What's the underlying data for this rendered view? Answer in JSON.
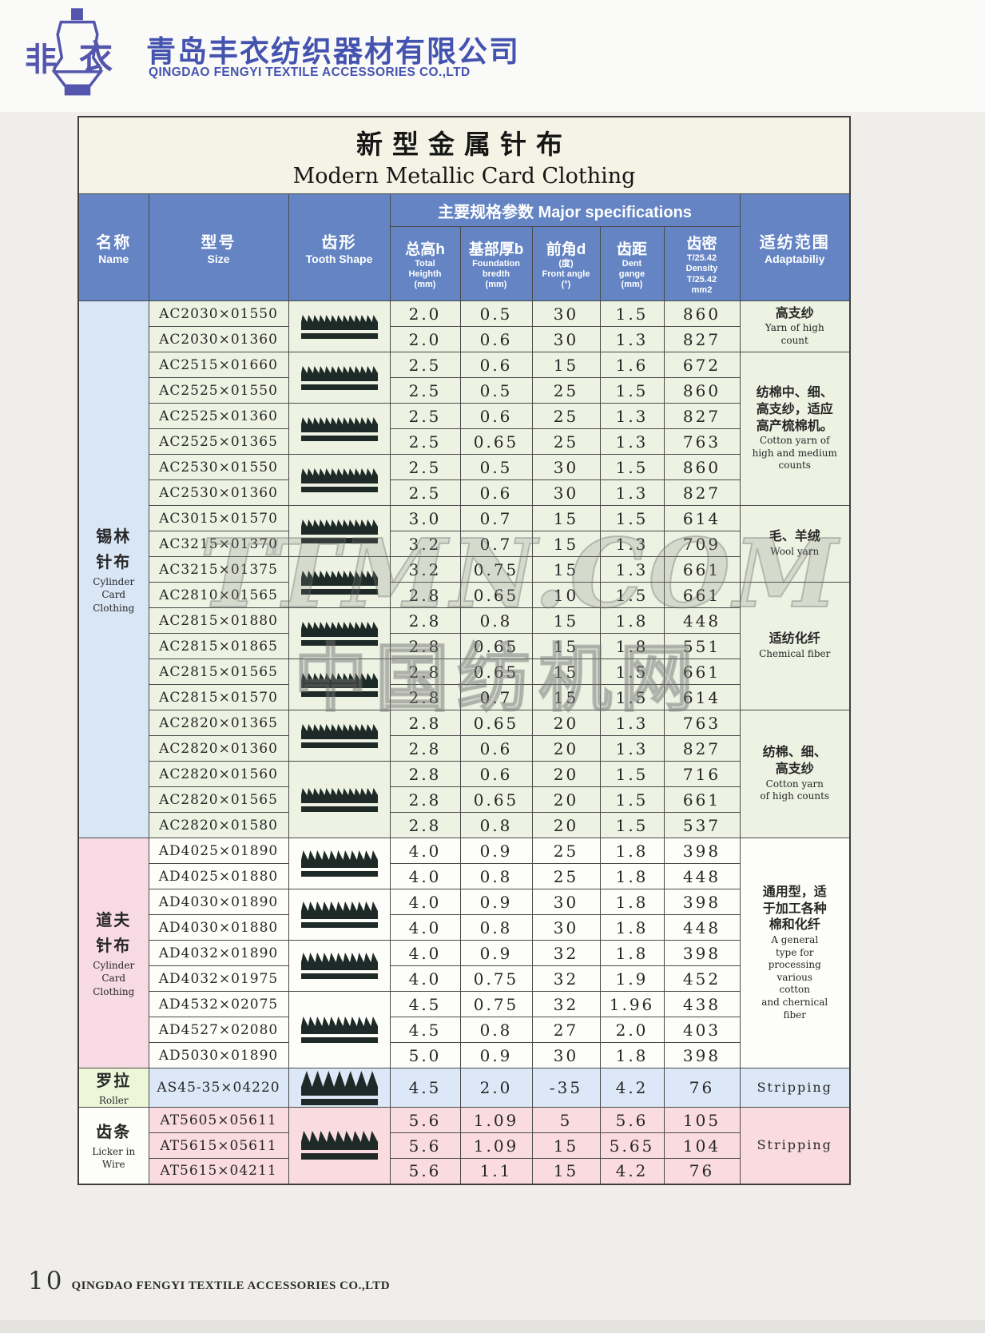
{
  "logo": {
    "mark_left": "非",
    "mark_right": "衣",
    "chinese_name": "青岛丰衣纺织器材有限公司",
    "english_name": "QINGDAO FENGYI TEXTILE ACCESSORIES CO.,LTD",
    "brand_color": "#4553b0"
  },
  "watermarks": [
    "TTMN.COM",
    "中国纺机网"
  ],
  "page": {
    "footer": {
      "page_number": "10",
      "company": "QINGDAO FENGYI TEXTILE ACCESSORIES CO.,LTD"
    }
  },
  "colors": {
    "header_blue": "#6484c4",
    "title_ivory": "#f4f3e5",
    "cylinder_row_green": "#edf2e2",
    "cylinder_name_blue": "#d9e6f5",
    "doffer_name_pink": "#f7dae3",
    "doffer_row_white": "#fdfdfa",
    "roller_row_blue": "#dce8f7",
    "roller_name_green": "#eef6da",
    "licker_row_pink": "#fadbe0",
    "tooth_dark": "#1e2a27"
  },
  "table": {
    "title_cn": "新型金属针布",
    "title_en": "Modern Metallic Card Clothing",
    "header": {
      "name_cn": "名称",
      "name_en": "Name",
      "size_cn": "型号",
      "size_en": "Size",
      "tooth_cn": "齿形",
      "tooth_en": "Tooth Shape",
      "specs_group": "主要规格参数 Major specifications",
      "spec_cols": [
        {
          "cn": "总高h",
          "sub": [
            "Total",
            "Heighth",
            "(mm)"
          ]
        },
        {
          "cn": "基部厚b",
          "sub": [
            "Foundation",
            "bredth",
            "(mm)"
          ]
        },
        {
          "cn": "前角d",
          "sub": [
            "(度)",
            "Front angle",
            "(°)"
          ]
        },
        {
          "cn": "齿距",
          "sub": [
            "Dent",
            "gange",
            "(mm)"
          ]
        },
        {
          "cn": "齿密",
          "sub": [
            "T/25.42",
            "Density",
            "T/25.42",
            "mm2"
          ]
        }
      ],
      "adapt_cn": "适纺范围",
      "adapt_en": "Adaptabiliy"
    },
    "groups": [
      {
        "name_cn": [
          "锡林",
          "针布"
        ],
        "name_en": [
          "Cylinder",
          "Card",
          "Clothing"
        ],
        "name_bg": "#d9e6f5",
        "row_bg": "#edf2e2",
        "tall": false,
        "rows": [
          {
            "size": "AC2030×01550",
            "values": [
              "2.0",
              "0.5",
              "30",
              "1.5",
              "860"
            ]
          },
          {
            "size": "AC2030×01360",
            "values": [
              "2.0",
              "0.6",
              "30",
              "1.3",
              "827"
            ]
          },
          {
            "size": "AC2515×01660",
            "values": [
              "2.5",
              "0.6",
              "15",
              "1.6",
              "672"
            ]
          },
          {
            "size": "AC2525×01550",
            "values": [
              "2.5",
              "0.5",
              "25",
              "1.5",
              "860"
            ]
          },
          {
            "size": "AC2525×01360",
            "values": [
              "2.5",
              "0.6",
              "25",
              "1.3",
              "827"
            ]
          },
          {
            "size": "AC2525×01365",
            "values": [
              "2.5",
              "0.65",
              "25",
              "1.3",
              "763"
            ]
          },
          {
            "size": "AC2530×01550",
            "values": [
              "2.5",
              "0.5",
              "30",
              "1.5",
              "860"
            ]
          },
          {
            "size": "AC2530×01360",
            "values": [
              "2.5",
              "0.6",
              "30",
              "1.3",
              "827"
            ]
          },
          {
            "size": "AC3015×01570",
            "values": [
              "3.0",
              "0.7",
              "15",
              "1.5",
              "614"
            ]
          },
          {
            "size": "AC3215×01370",
            "values": [
              "3.2",
              "0.7",
              "15",
              "1.3",
              "709"
            ]
          },
          {
            "size": "AC3215×01375",
            "values": [
              "3.2",
              "0.75",
              "15",
              "1.3",
              "661"
            ]
          },
          {
            "size": "AC2810×01565",
            "values": [
              "2.8",
              "0.65",
              "10",
              "1.5",
              "661"
            ]
          },
          {
            "size": "AC2815×01880",
            "values": [
              "2.8",
              "0.8",
              "15",
              "1.8",
              "448"
            ]
          },
          {
            "size": "AC2815×01865",
            "values": [
              "2.8",
              "0.65",
              "15",
              "1.8",
              "551"
            ]
          },
          {
            "size": "AC2815×01565",
            "values": [
              "2.8",
              "0.65",
              "15",
              "1.5",
              "661"
            ]
          },
          {
            "size": "AC2815×01570",
            "values": [
              "2.8",
              "0.7",
              "15",
              "1.5",
              "614"
            ]
          },
          {
            "size": "AC2820×01365",
            "values": [
              "2.8",
              "0.65",
              "20",
              "1.3",
              "763"
            ]
          },
          {
            "size": "AC2820×01360",
            "values": [
              "2.8",
              "0.6",
              "20",
              "1.3",
              "827"
            ]
          },
          {
            "size": "AC2820×01560",
            "values": [
              "2.8",
              "0.6",
              "20",
              "1.5",
              "716"
            ]
          },
          {
            "size": "AC2820×01565",
            "values": [
              "2.8",
              "0.65",
              "20",
              "1.5",
              "661"
            ]
          },
          {
            "size": "AC2820×01580",
            "values": [
              "2.8",
              "0.8",
              "20",
              "1.5",
              "537"
            ]
          }
        ],
        "tooth_cells": [
          {
            "start": 0,
            "span": 2,
            "icon": "tooth-profile-fine"
          },
          {
            "start": 2,
            "span": 2,
            "icon": "tooth-profile-fine"
          },
          {
            "start": 4,
            "span": 2,
            "icon": "tooth-profile-fine"
          },
          {
            "start": 6,
            "span": 2,
            "icon": "tooth-profile-fine"
          },
          {
            "start": 8,
            "span": 2,
            "icon": "tooth-profile-fine"
          },
          {
            "start": 10,
            "span": 2,
            "icon": "tooth-profile-fine"
          },
          {
            "start": 12,
            "span": 2,
            "icon": "tooth-profile-fine"
          },
          {
            "start": 14,
            "span": 2,
            "icon": "tooth-profile-fine"
          },
          {
            "start": 16,
            "span": 2,
            "icon": "tooth-profile-fine"
          },
          {
            "start": 18,
            "span": 3,
            "icon": "tooth-profile-fine"
          }
        ],
        "adapt_cells": [
          {
            "start": 0,
            "span": 2,
            "cn": [
              "高支纱"
            ],
            "en": [
              "Yarn of high",
              "count"
            ]
          },
          {
            "start": 2,
            "span": 6,
            "cn": [
              "纺棉中、细、",
              "高支纱，适应",
              "高产梳棉机。"
            ],
            "en": [
              "Cotton yarn of",
              "high and medium",
              "counts"
            ]
          },
          {
            "start": 8,
            "span": 3,
            "cn": [
              "毛、羊绒"
            ],
            "en": [
              "Wool yarn"
            ]
          },
          {
            "start": 11,
            "span": 5,
            "cn": [
              "适纺化纤"
            ],
            "en": [
              "Chemical fiber"
            ]
          },
          {
            "start": 16,
            "span": 5,
            "cn": [
              "纺棉、细、",
              "高支纱"
            ],
            "en": [
              "Cotton yarn",
              "of high counts"
            ]
          }
        ]
      },
      {
        "name_cn": [
          "道夫",
          "针布"
        ],
        "name_en": [
          "Cylinder",
          "Card",
          "Clothing"
        ],
        "name_bg": "#f7dae3",
        "row_bg": "#fdfdfa",
        "tall": false,
        "rows": [
          {
            "size": "AD4025×01890",
            "values": [
              "4.0",
              "0.9",
              "25",
              "1.8",
              "398"
            ]
          },
          {
            "size": "AD4025×01880",
            "values": [
              "4.0",
              "0.8",
              "25",
              "1.8",
              "448"
            ]
          },
          {
            "size": "AD4030×01890",
            "values": [
              "4.0",
              "0.9",
              "30",
              "1.8",
              "398"
            ]
          },
          {
            "size": "AD4030×01880",
            "values": [
              "4.0",
              "0.8",
              "30",
              "1.8",
              "448"
            ]
          },
          {
            "size": "AD4032×01890",
            "values": [
              "4.0",
              "0.9",
              "32",
              "1.8",
              "398"
            ]
          },
          {
            "size": "AD4032×01975",
            "values": [
              "4.0",
              "0.75",
              "32",
              "1.9",
              "452"
            ]
          },
          {
            "size": "AD4532×02075",
            "values": [
              "4.5",
              "0.75",
              "32",
              "1.96",
              "438"
            ]
          },
          {
            "size": "AD4527×02080",
            "values": [
              "4.5",
              "0.8",
              "27",
              "2.0",
              "403"
            ]
          },
          {
            "size": "AD5030×01890",
            "values": [
              "5.0",
              "0.9",
              "30",
              "1.8",
              "398"
            ]
          }
        ],
        "tooth_cells": [
          {
            "start": 0,
            "span": 2,
            "icon": "tooth-profile-medium"
          },
          {
            "start": 2,
            "span": 2,
            "icon": "tooth-profile-medium"
          },
          {
            "start": 4,
            "span": 2,
            "icon": "tooth-profile-medium"
          },
          {
            "start": 6,
            "span": 3,
            "icon": "tooth-profile-medium"
          }
        ],
        "adapt_cells": [
          {
            "start": 0,
            "span": 9,
            "cn": [
              "通用型，适",
              "于加工各种",
              "棉和化纤"
            ],
            "en": [
              "A general",
              "type for",
              "processing",
              "various",
              "cotton",
              "and chernical",
              "fiber"
            ]
          }
        ]
      },
      {
        "name_cn": [
          "罗拉"
        ],
        "name_en": [
          "Roller"
        ],
        "name_bg": "#eef6da",
        "row_bg": "#dce8f7",
        "tall": true,
        "rows": [
          {
            "size": "AS45-35×04220",
            "values": [
              "4.5",
              "2.0",
              "-35",
              "4.2",
              "76"
            ]
          }
        ],
        "tooth_cells": [
          {
            "start": 0,
            "span": 1,
            "icon": "tooth-profile-coarse"
          }
        ],
        "adapt_cells": [
          {
            "start": 0,
            "span": 1,
            "cn": [],
            "en": [
              "Stripping"
            ]
          }
        ]
      },
      {
        "name_cn": [
          "齿条"
        ],
        "name_en": [
          "Licker in",
          "Wire"
        ],
        "name_bg": "#fdfdfa",
        "row_bg": "#fadbe0",
        "tall": false,
        "rows": [
          {
            "size": "AT5605×05611",
            "values": [
              "5.6",
              "1.09",
              "5",
              "5.6",
              "105"
            ]
          },
          {
            "size": "AT5615×05611",
            "values": [
              "5.6",
              "1.09",
              "15",
              "5.65",
              "104"
            ]
          },
          {
            "size": "AT5615×04211",
            "values": [
              "5.6",
              "1.1",
              "15",
              "4.2",
              "76"
            ]
          }
        ],
        "tooth_cells": [
          {
            "start": 0,
            "span": 3,
            "icon": "tooth-profile-licker"
          }
        ],
        "adapt_cells": [
          {
            "start": 0,
            "span": 3,
            "cn": [],
            "en": [
              "Stripping"
            ]
          }
        ]
      }
    ]
  }
}
